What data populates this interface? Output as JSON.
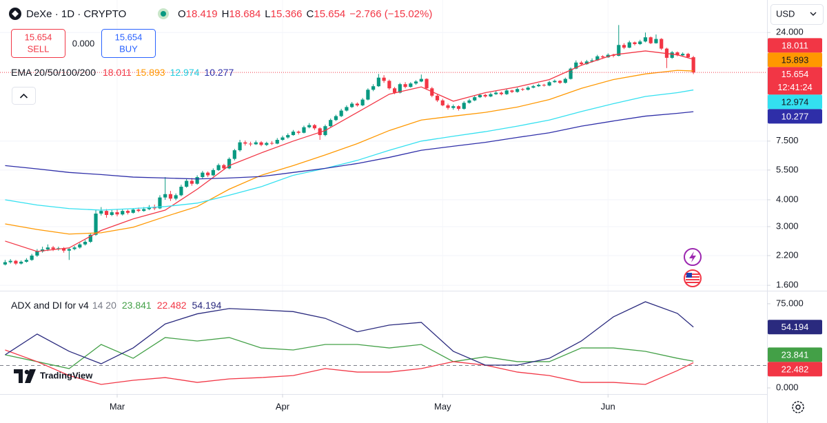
{
  "header": {
    "symbol": "DeXe · 1D · CRYPTO",
    "ohlc_labels": [
      "O",
      "H",
      "L",
      "C"
    ],
    "change": "−2.766 (−15.02%)"
  },
  "trade": {
    "sell": "SELL",
    "buy": "BUY",
    "spread": "0.000"
  },
  "currency": "USD",
  "watermark": "TradingView",
  "chart_data": [
    {
      "type": "candlestick",
      "legend_title": "EMA 20/50/100/200",
      "up_color": "#089981",
      "down_color": "#f23645",
      "countdown": "12:41:24",
      "log_scale": true,
      "grid": true,
      "xlim": [
        -0.96,
        142.8
      ],
      "xticks": [
        {
          "value": 21,
          "label": "Mar"
        },
        {
          "value": 52,
          "label": "Apr"
        },
        {
          "value": 82,
          "label": "May"
        },
        {
          "value": 113,
          "label": "Jun"
        }
      ],
      "ylim": [
        1.51,
        34
      ],
      "yticks": [
        {
          "value": 1.6,
          "label": "1.600"
        },
        {
          "value": 2.2,
          "label": "2.200"
        },
        {
          "value": 3,
          "label": "3.000"
        },
        {
          "value": 4,
          "label": "4.000"
        },
        {
          "value": 5.5,
          "label": "5.500"
        },
        {
          "value": 7.5,
          "label": "7.500"
        },
        {
          "value": 24,
          "label": "24.000"
        }
      ],
      "candles": [
        [
          2.0,
          2.1,
          1.98,
          2.05
        ],
        [
          2.05,
          2.12,
          2.02,
          2.08
        ],
        [
          2.08,
          2.1,
          1.99,
          2.02
        ],
        [
          2.02,
          2.09,
          2.0,
          2.06
        ],
        [
          2.06,
          2.14,
          2.04,
          2.1
        ],
        [
          2.1,
          2.24,
          2.08,
          2.2
        ],
        [
          2.2,
          2.36,
          2.17,
          2.3
        ],
        [
          2.3,
          2.42,
          2.27,
          2.35
        ],
        [
          2.35,
          2.48,
          2.31,
          2.4
        ],
        [
          2.4,
          2.44,
          2.31,
          2.36
        ],
        [
          2.36,
          2.42,
          2.32,
          2.38
        ],
        [
          2.38,
          2.41,
          2.27,
          2.32
        ],
        [
          2.32,
          2.4,
          2.1,
          2.36
        ],
        [
          2.36,
          2.44,
          2.33,
          2.4
        ],
        [
          2.4,
          2.52,
          2.37,
          2.48
        ],
        [
          2.48,
          2.6,
          2.45,
          2.55
        ],
        [
          2.55,
          2.8,
          2.52,
          2.75
        ],
        [
          2.75,
          3.6,
          2.72,
          3.45
        ],
        [
          3.45,
          3.7,
          3.38,
          3.55
        ],
        [
          3.55,
          3.62,
          3.3,
          3.4
        ],
        [
          3.4,
          3.58,
          3.36,
          3.5
        ],
        [
          3.5,
          3.6,
          3.35,
          3.42
        ],
        [
          3.42,
          3.62,
          3.38,
          3.55
        ],
        [
          3.55,
          3.6,
          3.42,
          3.48
        ],
        [
          3.48,
          3.66,
          3.45,
          3.6
        ],
        [
          3.6,
          3.68,
          3.5,
          3.55
        ],
        [
          3.55,
          3.7,
          3.52,
          3.62
        ],
        [
          3.62,
          3.78,
          3.58,
          3.7
        ],
        [
          3.7,
          3.8,
          3.58,
          3.65
        ],
        [
          3.65,
          4.2,
          3.62,
          4.1
        ],
        [
          4.1,
          5.1,
          4.0,
          4.25
        ],
        [
          4.25,
          4.4,
          3.95,
          4.05
        ],
        [
          4.05,
          4.28,
          3.98,
          4.2
        ],
        [
          4.2,
          4.7,
          4.15,
          4.6
        ],
        [
          4.6,
          5.0,
          4.55,
          4.9
        ],
        [
          4.9,
          5.05,
          4.65,
          4.75
        ],
        [
          4.75,
          5.2,
          4.7,
          5.1
        ],
        [
          5.1,
          5.45,
          5.02,
          5.35
        ],
        [
          5.35,
          5.42,
          5.1,
          5.2
        ],
        [
          5.2,
          5.6,
          5.15,
          5.5
        ],
        [
          5.5,
          5.9,
          5.45,
          5.8
        ],
        [
          5.8,
          5.88,
          5.5,
          5.6
        ],
        [
          5.6,
          6.3,
          5.55,
          6.2
        ],
        [
          6.2,
          6.9,
          6.1,
          6.8
        ],
        [
          6.8,
          7.6,
          6.7,
          7.4
        ],
        [
          7.4,
          7.55,
          7.15,
          7.3
        ],
        [
          7.3,
          7.45,
          7.1,
          7.25
        ],
        [
          7.25,
          7.55,
          7.2,
          7.4
        ],
        [
          7.4,
          7.5,
          7.1,
          7.2
        ],
        [
          7.2,
          7.45,
          7.12,
          7.35
        ],
        [
          7.35,
          7.5,
          7.2,
          7.3
        ],
        [
          7.3,
          7.75,
          7.25,
          7.6
        ],
        [
          7.6,
          7.95,
          7.52,
          7.8
        ],
        [
          7.8,
          8.15,
          7.7,
          8.0
        ],
        [
          8.0,
          8.45,
          7.95,
          8.3
        ],
        [
          8.3,
          8.4,
          8.05,
          8.2
        ],
        [
          8.2,
          8.85,
          8.15,
          8.7
        ],
        [
          8.7,
          9.1,
          8.6,
          8.9
        ],
        [
          8.9,
          9.0,
          8.45,
          8.6
        ],
        [
          8.6,
          8.7,
          7.6,
          8.0
        ],
        [
          8.0,
          8.95,
          7.9,
          8.8
        ],
        [
          8.8,
          9.55,
          8.7,
          9.4
        ],
        [
          9.4,
          9.95,
          9.3,
          9.8
        ],
        [
          9.8,
          10.6,
          9.7,
          10.4
        ],
        [
          10.4,
          11.0,
          10.3,
          10.8
        ],
        [
          10.8,
          11.4,
          10.7,
          11.2
        ],
        [
          11.2,
          11.35,
          10.85,
          11.0
        ],
        [
          11.0,
          11.9,
          10.9,
          11.7
        ],
        [
          11.7,
          13.2,
          11.6,
          13.0
        ],
        [
          13.0,
          13.8,
          12.8,
          13.5
        ],
        [
          13.5,
          15.4,
          13.4,
          14.8
        ],
        [
          14.8,
          15.2,
          14.0,
          14.3
        ],
        [
          14.3,
          14.5,
          13.0,
          13.2
        ],
        [
          13.2,
          13.4,
          12.4,
          12.6
        ],
        [
          12.6,
          14.0,
          12.5,
          13.8
        ],
        [
          13.8,
          14.1,
          13.2,
          13.4
        ],
        [
          13.4,
          14.1,
          13.3,
          13.9
        ],
        [
          13.9,
          14.4,
          13.7,
          14.2
        ],
        [
          14.2,
          15.3,
          14.1,
          14.6
        ],
        [
          14.6,
          14.7,
          13.0,
          13.2
        ],
        [
          13.2,
          13.4,
          12.0,
          12.2
        ],
        [
          12.2,
          12.4,
          11.4,
          11.6
        ],
        [
          11.6,
          11.8,
          10.9,
          11.0
        ],
        [
          11.0,
          11.2,
          10.5,
          10.7
        ],
        [
          10.7,
          11.1,
          10.5,
          10.9
        ],
        [
          10.9,
          11.0,
          10.4,
          10.6
        ],
        [
          10.6,
          11.5,
          10.5,
          11.3
        ],
        [
          11.3,
          11.8,
          11.2,
          11.6
        ],
        [
          11.6,
          12.2,
          11.5,
          12.0
        ],
        [
          12.0,
          12.5,
          11.9,
          12.3
        ],
        [
          12.3,
          12.45,
          11.95,
          12.1
        ],
        [
          12.1,
          12.6,
          12.0,
          12.4
        ],
        [
          12.4,
          12.9,
          12.3,
          12.6
        ],
        [
          12.6,
          12.75,
          12.25,
          12.4
        ],
        [
          12.4,
          13.1,
          12.3,
          12.9
        ],
        [
          12.9,
          13.0,
          12.55,
          12.7
        ],
        [
          12.7,
          13.3,
          12.6,
          13.1
        ],
        [
          13.1,
          13.25,
          12.85,
          13.0
        ],
        [
          13.0,
          13.5,
          12.9,
          13.3
        ],
        [
          13.3,
          13.7,
          13.2,
          13.5
        ],
        [
          13.5,
          13.9,
          13.4,
          13.7
        ],
        [
          13.7,
          13.85,
          13.45,
          13.6
        ],
        [
          13.6,
          14.3,
          13.5,
          14.1
        ],
        [
          14.1,
          14.5,
          14.0,
          14.3
        ],
        [
          14.3,
          14.4,
          13.85,
          14.0
        ],
        [
          14.0,
          14.8,
          13.9,
          14.6
        ],
        [
          14.6,
          16.5,
          14.5,
          16.3
        ],
        [
          16.3,
          17.8,
          16.2,
          17.4
        ],
        [
          17.4,
          17.7,
          16.8,
          17.1
        ],
        [
          17.1,
          17.9,
          17.0,
          17.6
        ],
        [
          17.6,
          18.2,
          17.4,
          17.8
        ],
        [
          17.8,
          18.9,
          17.7,
          18.6
        ],
        [
          18.6,
          18.8,
          18.1,
          18.4
        ],
        [
          18.4,
          19.2,
          18.3,
          18.9
        ],
        [
          18.9,
          19.1,
          18.4,
          18.7
        ],
        [
          18.7,
          26.0,
          18.6,
          21.0
        ],
        [
          21.0,
          21.4,
          20.1,
          20.4
        ],
        [
          20.4,
          22.0,
          20.3,
          21.6
        ],
        [
          21.6,
          21.8,
          20.9,
          21.2
        ],
        [
          21.2,
          22.2,
          21.0,
          21.8
        ],
        [
          21.8,
          24.0,
          21.6,
          22.8
        ],
        [
          22.8,
          23.0,
          21.2,
          21.4
        ],
        [
          21.4,
          23.5,
          21.3,
          22.4
        ],
        [
          22.4,
          22.6,
          19.9,
          20.2
        ],
        [
          20.2,
          20.4,
          16.4,
          18.3
        ],
        [
          18.3,
          19.7,
          18.1,
          19.4
        ],
        [
          19.4,
          19.6,
          18.6,
          18.8
        ],
        [
          18.8,
          19.4,
          18.6,
          19.1
        ],
        [
          19.1,
          19.3,
          18.3,
          18.42
        ],
        [
          18.419,
          18.684,
          15.366,
          15.654
        ]
      ],
      "overlays": {
        "x": [
          0,
          6,
          12,
          18,
          24,
          30,
          36,
          42,
          48,
          54,
          60,
          66,
          72,
          78,
          84,
          90,
          96,
          102,
          108,
          114,
          120,
          126,
          129
        ],
        "series": [
          {
            "color": "#f23645",
            "values": [
              2.57,
              2.3,
              2.39,
              2.88,
              3.26,
              3.58,
              4.48,
              5.77,
              6.61,
              7.5,
              8.4,
              10.2,
              12.4,
              13.4,
              11.5,
              12.6,
              13.4,
              14.5,
              16.9,
              18.9,
              19.7,
              18.9,
              18.011
            ]
          },
          {
            "color": "#ff9800",
            "values": [
              3.09,
              2.91,
              2.77,
              2.81,
              2.98,
              3.34,
              3.72,
              4.48,
              5.2,
              5.77,
              6.47,
              7.3,
              8.4,
              9.4,
              9.8,
              10.2,
              10.8,
              11.7,
              13.2,
              14.5,
              15.4,
              16.0,
              15.893
            ]
          },
          {
            "color": "#33e0f0",
            "values": [
              4.0,
              3.78,
              3.64,
              3.58,
              3.64,
              3.72,
              3.86,
              4.2,
              4.6,
              5.2,
              5.6,
              6.1,
              6.8,
              7.5,
              7.9,
              8.3,
              8.8,
              9.4,
              10.3,
              11.2,
              12.1,
              12.6,
              12.974
            ]
          },
          {
            "color": "#2e2ea8",
            "values": [
              5.77,
              5.57,
              5.36,
              5.24,
              5.1,
              5.05,
              5.0,
              5.05,
              5.13,
              5.36,
              5.6,
              5.9,
              6.3,
              6.8,
              7.1,
              7.4,
              7.8,
              8.2,
              8.8,
              9.3,
              9.8,
              10.1,
              10.277
            ]
          }
        ]
      }
    },
    {
      "type": "line",
      "title": "ADX and DI for v4",
      "params": "14 20",
      "level": 20,
      "ylim": [
        -5.5,
        86
      ],
      "yticks": [
        {
          "value": 0,
          "label": "0.000"
        },
        {
          "value": 75,
          "label": "75.000"
        }
      ],
      "x": [
        0,
        6,
        12,
        18,
        24,
        30,
        36,
        42,
        48,
        54,
        60,
        66,
        72,
        78,
        84,
        90,
        96,
        102,
        108,
        114,
        120,
        126,
        129
      ],
      "series": [
        {
          "color": "#43a047",
          "values": [
            29.5,
            23.4,
            17.2,
            38.7,
            26.4,
            44.9,
            41.8,
            44.9,
            35.6,
            33.8,
            38.7,
            38.7,
            35.6,
            38.7,
            23.4,
            27.7,
            23.4,
            23.4,
            35.6,
            35.6,
            32.6,
            26.4,
            23.841
          ]
        },
        {
          "color": "#f23645",
          "values": [
            33.8,
            23.4,
            11,
            3.1,
            6.8,
            9.2,
            4.9,
            8,
            9.2,
            11,
            17.2,
            14.1,
            14.1,
            17.2,
            23.4,
            20.3,
            14.1,
            11,
            4.9,
            4.9,
            3.1,
            15.4,
            22.482
          ]
        },
        {
          "color": "#2a2a7e",
          "values": [
            29.5,
            48,
            32.6,
            21.5,
            35.6,
            57,
            66,
            70.7,
            69.5,
            68,
            62,
            50,
            56,
            58.4,
            32.6,
            20.3,
            20.3,
            26.4,
            41.8,
            63.3,
            76.8,
            66.4,
            54.194
          ]
        }
      ]
    }
  ]
}
